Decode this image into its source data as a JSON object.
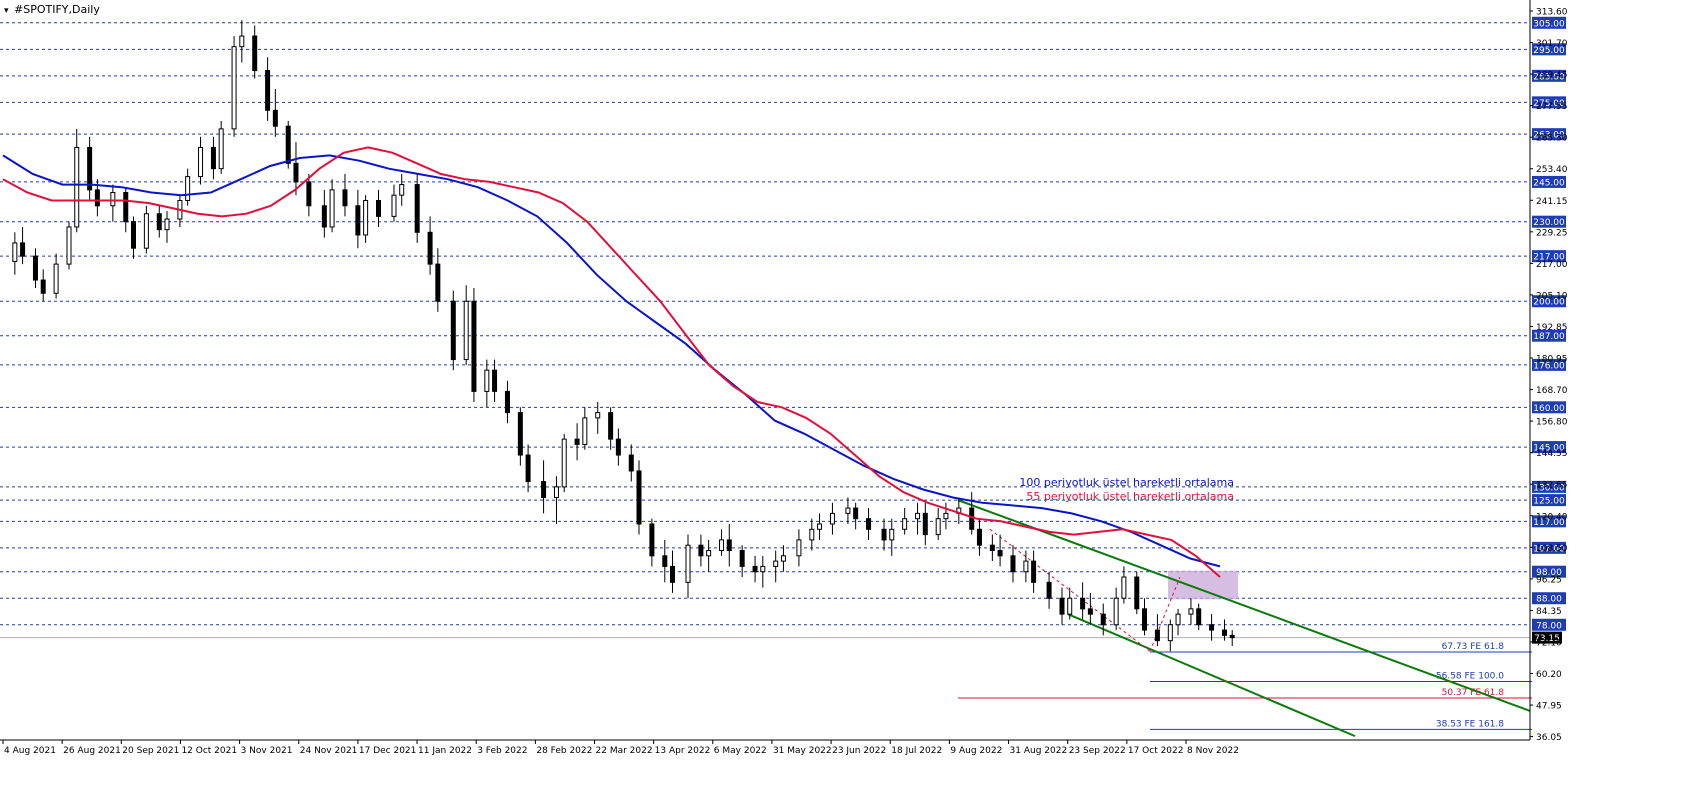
{
  "window": {
    "title": "#SPOTIFY,Daily"
  },
  "colors": {
    "background": "#ffffff",
    "candle": "#000000",
    "ema100": "#0a14c8",
    "ema55": "#e0103a",
    "trend": "#0a7a0a",
    "hline": "#1e3cb4",
    "tag_bg": "#1e3cb4",
    "current_tag_bg": "#000000",
    "zone": "#c8a8d8",
    "fib_blue": "#1e3cb4",
    "fib_red": "#e0103a"
  },
  "legend": {
    "ema100_text": "100 periyotluk üstel hareketli ortalama",
    "ema55_text": "55 periyotluk üstel hareketli ortalama"
  },
  "chart_data": {
    "type": "candlestick",
    "title": "#SPOTIFY,Daily",
    "ylim": [
      36.05,
      313.6
    ],
    "price_axis_labels": [
      "313.60",
      "301.70",
      "289.45",
      "277.55",
      "265.30",
      "253.40",
      "241.15",
      "229.25",
      "217.00",
      "205.10",
      "192.85",
      "180.95",
      "168.70",
      "156.80",
      "144.55",
      "132.65",
      "120.40",
      "108.50",
      "96.25",
      "84.35",
      "72.10",
      "60.20",
      "47.95",
      "36.05"
    ],
    "date_axis_labels": [
      "4 Aug 2021",
      "26 Aug 2021",
      "20 Sep 2021",
      "12 Oct 2021",
      "3 Nov 2021",
      "24 Nov 2021",
      "17 Dec 2021",
      "11 Jan 2022",
      "3 Feb 2022",
      "28 Feb 2022",
      "22 Mar 2022",
      "13 Apr 2022",
      "6 May 2022",
      "31 May 2022",
      "23 Jun 2022",
      "18 Jul 2022",
      "9 Aug 2022",
      "31 Aug 2022",
      "23 Sep 2022",
      "17 Oct 2022",
      "8 Nov 2022"
    ],
    "horizontal_levels": [
      305,
      295,
      285,
      275,
      263,
      245,
      230,
      217,
      200,
      187,
      176,
      160,
      145,
      130,
      125,
      117,
      107,
      98,
      88,
      78
    ],
    "horizontal_level_labels": [
      "305.00",
      "295.00",
      "285.00",
      "275.00",
      "263.00",
      "245.00",
      "230.00",
      "217.00",
      "200.00",
      "187.00",
      "176.00",
      "160.00",
      "145.00",
      "130.00",
      "125.00",
      "117.00",
      "107.00",
      "98.00",
      "88.00",
      "78.00"
    ],
    "current_price": 73.15,
    "current_price_label": "73.15",
    "ohlc_dates": [
      "2021-08-02",
      "2021-08-05",
      "2021-08-10",
      "2021-08-13",
      "2021-08-18",
      "2021-08-23",
      "2021-08-26",
      "2021-08-31",
      "2021-09-03",
      "2021-09-09",
      "2021-09-14",
      "2021-09-17",
      "2021-09-22",
      "2021-09-27",
      "2021-09-30",
      "2021-10-05",
      "2021-10-08",
      "2021-10-13",
      "2021-10-18",
      "2021-10-21",
      "2021-10-26",
      "2021-10-29",
      "2021-11-03",
      "2021-11-08",
      "2021-11-11",
      "2021-11-16",
      "2021-11-19",
      "2021-11-24",
      "2021-11-30",
      "2021-12-03",
      "2021-12-08",
      "2021-12-13",
      "2021-12-16",
      "2021-12-21",
      "2021-12-27",
      "2021-12-30",
      "2022-01-05",
      "2022-01-10",
      "2022-01-13",
      "2022-01-19",
      "2022-01-24",
      "2022-01-27",
      "2022-02-01",
      "2022-02-04",
      "2022-02-09",
      "2022-02-14",
      "2022-02-17",
      "2022-02-23",
      "2022-02-28",
      "2022-03-03",
      "2022-03-08",
      "2022-03-11",
      "2022-03-16",
      "2022-03-21",
      "2022-03-24",
      "2022-03-29",
      "2022-04-01",
      "2022-04-06",
      "2022-04-11",
      "2022-04-14",
      "2022-04-20",
      "2022-04-25",
      "2022-04-28",
      "2022-05-03",
      "2022-05-06",
      "2022-05-11",
      "2022-05-16",
      "2022-05-19",
      "2022-05-24",
      "2022-05-27",
      "2022-06-02",
      "2022-06-07",
      "2022-06-10",
      "2022-06-15",
      "2022-06-21",
      "2022-06-24",
      "2022-06-29",
      "2022-07-05",
      "2022-07-08",
      "2022-07-13",
      "2022-07-18",
      "2022-07-21",
      "2022-07-26",
      "2022-07-29",
      "2022-08-03",
      "2022-08-08",
      "2022-08-11",
      "2022-08-16",
      "2022-08-19",
      "2022-08-24",
      "2022-08-29",
      "2022-09-01",
      "2022-09-07",
      "2022-09-12",
      "2022-09-15",
      "2022-09-20",
      "2022-09-23",
      "2022-09-28",
      "2022-10-03",
      "2022-10-06",
      "2022-10-11",
      "2022-10-14",
      "2022-10-19",
      "2022-10-24",
      "2022-10-27",
      "2022-11-01",
      "2022-11-04",
      "2022-11-09",
      "2022-11-14",
      "2022-11-17",
      "2022-11-22"
    ],
    "ohlc": [
      [
        215,
        226,
        210,
        222
      ],
      [
        222,
        228,
        214,
        217
      ],
      [
        217,
        220,
        205,
        208
      ],
      [
        208,
        212,
        200,
        203
      ],
      [
        203,
        218,
        201,
        214
      ],
      [
        214,
        230,
        212,
        228
      ],
      [
        228,
        265,
        226,
        258
      ],
      [
        258,
        262,
        238,
        242
      ],
      [
        242,
        246,
        232,
        236
      ],
      [
        236,
        244,
        230,
        241
      ],
      [
        241,
        243,
        226,
        230
      ],
      [
        230,
        232,
        216,
        220
      ],
      [
        220,
        236,
        218,
        233
      ],
      [
        233,
        236,
        224,
        227
      ],
      [
        227,
        234,
        222,
        231
      ],
      [
        231,
        240,
        228,
        238
      ],
      [
        238,
        250,
        236,
        247
      ],
      [
        247,
        262,
        244,
        258
      ],
      [
        258,
        262,
        246,
        250
      ],
      [
        250,
        268,
        248,
        265
      ],
      [
        265,
        300,
        262,
        296
      ],
      [
        296,
        306,
        290,
        300
      ],
      [
        300,
        304,
        284,
        287
      ],
      [
        287,
        292,
        268,
        272
      ],
      [
        272,
        280,
        262,
        266
      ],
      [
        266,
        268,
        250,
        252
      ],
      [
        252,
        260,
        240,
        245
      ],
      [
        245,
        248,
        232,
        236
      ],
      [
        236,
        242,
        224,
        228
      ],
      [
        228,
        246,
        226,
        242
      ],
      [
        242,
        248,
        232,
        236
      ],
      [
        236,
        242,
        220,
        225
      ],
      [
        225,
        240,
        222,
        238
      ],
      [
        238,
        242,
        228,
        232
      ],
      [
        232,
        244,
        230,
        240
      ],
      [
        240,
        248,
        236,
        244
      ],
      [
        244,
        248,
        222,
        226
      ],
      [
        226,
        232,
        210,
        214
      ],
      [
        214,
        220,
        196,
        200
      ],
      [
        200,
        204,
        174,
        178
      ],
      [
        178,
        206,
        176,
        200
      ],
      [
        200,
        205,
        162,
        166
      ],
      [
        166,
        178,
        160,
        174
      ],
      [
        174,
        178,
        162,
        166
      ],
      [
        166,
        170,
        154,
        158
      ],
      [
        158,
        160,
        138,
        142
      ],
      [
        142,
        146,
        128,
        132
      ],
      [
        132,
        140,
        120,
        126
      ],
      [
        126,
        134,
        116,
        130
      ],
      [
        130,
        150,
        128,
        148
      ],
      [
        148,
        154,
        140,
        146
      ],
      [
        146,
        160,
        144,
        156
      ],
      [
        156,
        162,
        150,
        158
      ],
      [
        158,
        160,
        144,
        148
      ],
      [
        148,
        152,
        138,
        142
      ],
      [
        142,
        146,
        132,
        136
      ],
      [
        136,
        140,
        112,
        116
      ],
      [
        116,
        118,
        100,
        104
      ],
      [
        104,
        110,
        94,
        100
      ],
      [
        100,
        106,
        90,
        94
      ],
      [
        94,
        112,
        88,
        108
      ],
      [
        108,
        112,
        100,
        104
      ],
      [
        104,
        110,
        98,
        106
      ],
      [
        106,
        114,
        104,
        110
      ],
      [
        110,
        116,
        100,
        106
      ],
      [
        106,
        108,
        96,
        100
      ],
      [
        100,
        104,
        94,
        98
      ],
      [
        98,
        104,
        92,
        100
      ],
      [
        100,
        106,
        94,
        102
      ],
      [
        102,
        108,
        98,
        104
      ],
      [
        104,
        114,
        100,
        110
      ],
      [
        110,
        118,
        106,
        114
      ],
      [
        114,
        120,
        110,
        116
      ],
      [
        116,
        124,
        112,
        120
      ],
      [
        120,
        126,
        116,
        122
      ],
      [
        122,
        124,
        114,
        118
      ],
      [
        118,
        122,
        110,
        114
      ],
      [
        114,
        118,
        106,
        110
      ],
      [
        110,
        118,
        104,
        114
      ],
      [
        114,
        122,
        112,
        118
      ],
      [
        118,
        124,
        112,
        120
      ],
      [
        120,
        124,
        108,
        112
      ],
      [
        112,
        122,
        110,
        118
      ],
      [
        118,
        124,
        114,
        120
      ],
      [
        120,
        126,
        116,
        122
      ],
      [
        122,
        128,
        112,
        114
      ],
      [
        114,
        118,
        104,
        108
      ],
      [
        108,
        112,
        102,
        106
      ],
      [
        106,
        112,
        100,
        104
      ],
      [
        104,
        108,
        94,
        98
      ],
      [
        98,
        106,
        94,
        102
      ],
      [
        102,
        106,
        90,
        94
      ],
      [
        94,
        98,
        84,
        88
      ],
      [
        88,
        92,
        78,
        82
      ],
      [
        82,
        92,
        80,
        88
      ],
      [
        88,
        94,
        80,
        84
      ],
      [
        84,
        90,
        78,
        82
      ],
      [
        82,
        86,
        74,
        78
      ],
      [
        78,
        92,
        76,
        88
      ],
      [
        88,
        100,
        86,
        96
      ],
      [
        96,
        98,
        82,
        84
      ],
      [
        84,
        88,
        74,
        76
      ],
      [
        76,
        82,
        70,
        72
      ],
      [
        72,
        80,
        68,
        78
      ],
      [
        78,
        84,
        74,
        82
      ],
      [
        82,
        88,
        78,
        84
      ],
      [
        84,
        86,
        76,
        78
      ],
      [
        78,
        82,
        72,
        76
      ],
      [
        76,
        80,
        72,
        74
      ],
      [
        74,
        76,
        70,
        73.15
      ]
    ],
    "ema55_values": [
      246,
      241,
      238,
      238,
      238,
      238,
      237,
      235,
      233,
      232,
      233,
      236,
      242,
      250,
      256,
      258,
      256,
      252,
      248,
      246,
      245,
      243,
      241,
      237,
      230,
      220,
      210,
      200,
      188,
      176,
      168,
      162,
      160,
      156,
      150,
      142,
      134,
      128,
      124,
      121,
      118,
      117,
      115,
      113,
      112,
      113,
      114,
      112,
      110,
      104,
      96
    ],
    "ema100_values": [
      255,
      248,
      244,
      244,
      243,
      241,
      240,
      241,
      246,
      251,
      254,
      255,
      253,
      250,
      248,
      246,
      243,
      238,
      232,
      222,
      210,
      200,
      192,
      184,
      174,
      165,
      155,
      150,
      144,
      138,
      133,
      129,
      126,
      124,
      123,
      122,
      120,
      117,
      113,
      108,
      103,
      100
    ],
    "fib_levels": [
      {
        "value": 67.73,
        "label": "67.73 FE 61.8",
        "color": "blue"
      },
      {
        "value": 56.58,
        "label": "56.58 FE 100.0",
        "color": "blue"
      },
      {
        "value": 50.37,
        "label": "50.37 FE 61.8",
        "color": "red"
      },
      {
        "value": 38.53,
        "label": "38.53 FE 161.8",
        "color": "blue"
      }
    ]
  }
}
